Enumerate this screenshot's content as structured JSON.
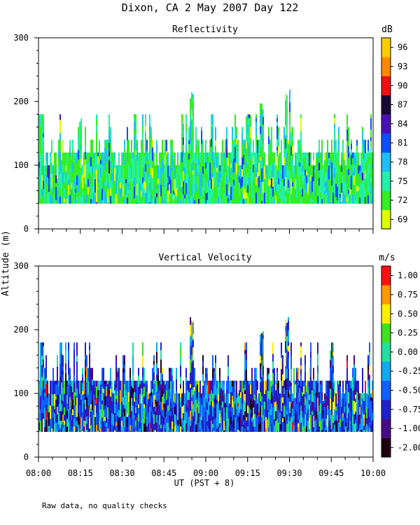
{
  "title": "Dixon, CA  2 May 2007  Day 122",
  "note": "Raw data, no quality checks",
  "ylabel": "Altitude (m)",
  "chart_data": [
    {
      "type": "heatmap",
      "title": "Reflectivity",
      "units": "dB",
      "ylim": [
        0,
        300
      ],
      "yticks": [
        0,
        100,
        200,
        300
      ],
      "data_range_m": [
        40,
        220
      ],
      "colorbar": {
        "tick_labels": [
          "69",
          "72",
          "75",
          "78",
          "81",
          "84",
          "87",
          "90",
          "93",
          "96"
        ],
        "colors": [
          "#ddff00",
          "#33ee22",
          "#22f0a8",
          "#1cc0f4",
          "#0a50ff",
          "#4a10b8",
          "#1a0838",
          "#ee1010",
          "#ff8800",
          "#ffcc00"
        ]
      },
      "palette": [
        "#ddff00",
        "#33ee22",
        "#22f0a8",
        "#1cc0f4",
        "#0a50ff",
        "#4a10b8"
      ],
      "weights": [
        0.05,
        0.38,
        0.35,
        0.15,
        0.06,
        0.01
      ],
      "peaks": [
        {
          "time": "08:55",
          "height_m": 220
        },
        {
          "time": "09:20",
          "height_m": 200
        },
        {
          "time": "09:29",
          "height_m": 220
        },
        {
          "time": "09:15",
          "height_m": 180
        },
        {
          "time": "08:15",
          "height_m": 180
        }
      ]
    },
    {
      "type": "heatmap",
      "title": "Vertical Velocity",
      "units": "m/s",
      "ylim": [
        0,
        300
      ],
      "yticks": [
        0,
        100,
        200,
        300
      ],
      "data_range_m": [
        40,
        220
      ],
      "colorbar": {
        "tick_labels": [
          "-2.00",
          "-1.00",
          "-0.75",
          "-0.50",
          "-0.25",
          "0.00",
          "0.25",
          "0.50",
          "0.75",
          "1.00"
        ],
        "colors": [
          "#200010",
          "#4a0a88",
          "#2020cc",
          "#1060ff",
          "#10a8f0",
          "#20e0a0",
          "#40e020",
          "#ffee00",
          "#ff9900",
          "#ff1010"
        ]
      },
      "palette": [
        "#200010",
        "#4a0a88",
        "#2020cc",
        "#1060ff",
        "#10a8f0",
        "#20e0a0",
        "#40e020",
        "#ffee00",
        "#ff9900",
        "#ff1010"
      ],
      "weights": [
        0.05,
        0.08,
        0.26,
        0.24,
        0.16,
        0.09,
        0.05,
        0.04,
        0.02,
        0.01
      ],
      "peaks": [
        {
          "time": "08:55",
          "height_m": 220
        },
        {
          "time": "09:20",
          "height_m": 200
        },
        {
          "time": "09:29",
          "height_m": 220
        },
        {
          "time": "09:45",
          "height_m": 180
        }
      ]
    }
  ],
  "xaxis": {
    "tick_labels": [
      "08:00",
      "08:15",
      "08:30",
      "08:45",
      "09:00",
      "09:15",
      "09:30",
      "09:45",
      "10:00"
    ],
    "xlim": [
      "08:00",
      "10:00"
    ],
    "label": "UT  (PST + 8)"
  }
}
